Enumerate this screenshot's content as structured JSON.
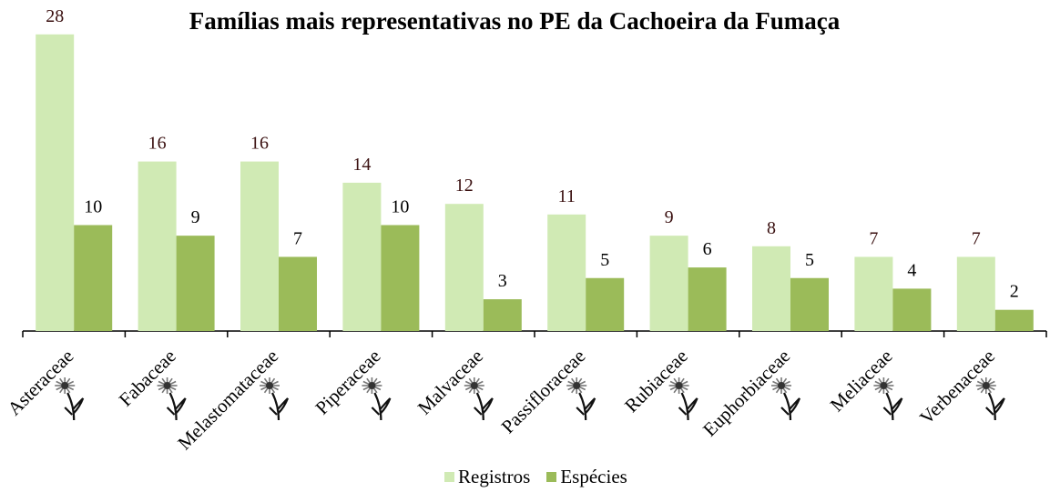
{
  "chart_data": {
    "type": "bar",
    "title": "Famílias mais representativas no PE da Cachoeira da Fumaça",
    "categories": [
      "Asteraceae",
      "Fabaceae",
      "Melastomataceae",
      "Piperaceae",
      "Malvaceae",
      "Passifloraceae",
      "Rubiaceae",
      "Euphorbiaceae",
      "Meliaceae",
      "Verbenaceae"
    ],
    "series": [
      {
        "name": "Registros",
        "color": "#d0eab4",
        "values": [
          28,
          16,
          16,
          14,
          12,
          11,
          9,
          8,
          7,
          7
        ]
      },
      {
        "name": "Espécies",
        "color": "#9bbb59",
        "values": [
          10,
          9,
          7,
          10,
          3,
          5,
          6,
          5,
          4,
          2
        ]
      }
    ],
    "xlabel": "",
    "ylabel": "",
    "ylim": [
      0,
      31
    ],
    "grid": false,
    "legend": "bottom",
    "data_labels": true,
    "category_icon": "flower-icon"
  }
}
